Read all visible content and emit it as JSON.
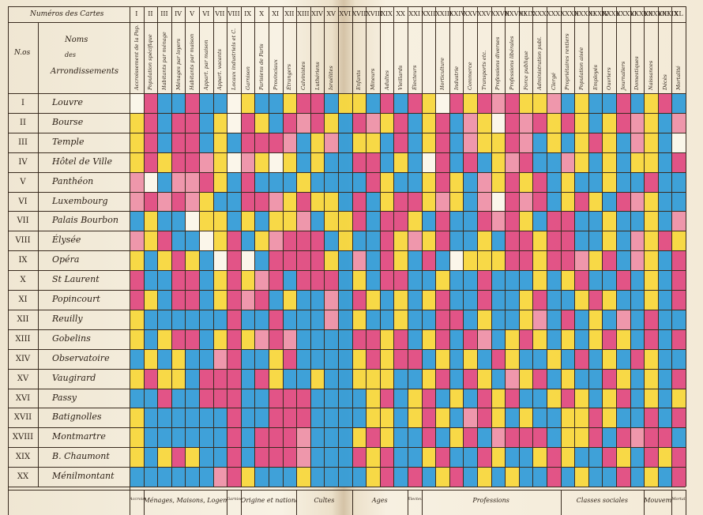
{
  "header": {
    "cards_title": "Numéros des Cartes",
    "no_label": "N.os",
    "names_label": [
      "Noms",
      "des",
      "Arrondissements"
    ]
  },
  "columns": [
    {
      "num": "I",
      "label": "Accroissement de la Pop."
    },
    {
      "num": "II",
      "label": "Population spécifique"
    },
    {
      "num": "III",
      "label": "Habitants par ménage"
    },
    {
      "num": "IV",
      "label": "Ménages par loyers"
    },
    {
      "num": "V",
      "label": "Habitants par maison"
    },
    {
      "num": "VI",
      "label": "Appart. par maison"
    },
    {
      "num": "VII",
      "label": "Appart. vacants"
    },
    {
      "num": "VIII",
      "label": "Locaux industriels et C."
    },
    {
      "num": "IX",
      "label": "Garnison"
    },
    {
      "num": "X",
      "label": "Parisiens de Paris"
    },
    {
      "num": "XI",
      "label": "Provinciaux"
    },
    {
      "num": "XII",
      "label": "Étrangers"
    },
    {
      "num": "XIII",
      "label": "Calvinistes"
    },
    {
      "num": "XIV",
      "label": "Luthériens"
    },
    {
      "num": "XV",
      "label": "Israélites"
    },
    {
      "num": "XVI",
      "label": ""
    },
    {
      "num": "XVII",
      "label": "Enfants"
    },
    {
      "num": "XVIII",
      "label": "Mineurs"
    },
    {
      "num": "XIX",
      "label": "Adultes"
    },
    {
      "num": "XX",
      "label": "Vieillards"
    },
    {
      "num": "XXI",
      "label": "Électeurs"
    },
    {
      "num": "XXII",
      "label": ""
    },
    {
      "num": "XXIII",
      "label": "Horticulture"
    },
    {
      "num": "XXIV",
      "label": "Industrie"
    },
    {
      "num": "XXV",
      "label": "Commerce"
    },
    {
      "num": "XXVI",
      "label": "Transports etc."
    },
    {
      "num": "XXVII",
      "label": "Professions diverses"
    },
    {
      "num": "XXVIII",
      "label": "Professions libérales"
    },
    {
      "num": "XXIX",
      "label": "Force publique"
    },
    {
      "num": "XXX",
      "label": "Administration publ."
    },
    {
      "num": "XXXI",
      "label": "Clergé"
    },
    {
      "num": "XXXII",
      "label": "Propriétaires rentiers"
    },
    {
      "num": "XXXIII",
      "label": "Population aisée"
    },
    {
      "num": "XXXIV",
      "label": "Employés"
    },
    {
      "num": "XXXV",
      "label": "Ouvriers"
    },
    {
      "num": "XXXVI",
      "label": "Journaliers"
    },
    {
      "num": "XXXVII",
      "label": "Domestiques"
    },
    {
      "num": "XXXVIII",
      "label": "Naissances"
    },
    {
      "num": "XXXIX",
      "label": "Décès"
    },
    {
      "num": "XL",
      "label": "Mortalité"
    }
  ],
  "rows": [
    {
      "num": "I",
      "name": "Louvre"
    },
    {
      "num": "II",
      "name": "Bourse"
    },
    {
      "num": "III",
      "name": "Temple"
    },
    {
      "num": "IV",
      "name": "Hôtel de Ville"
    },
    {
      "num": "V",
      "name": "Panthéon"
    },
    {
      "num": "VI",
      "name": "Luxembourg"
    },
    {
      "num": "VII",
      "name": "Palais Bourbon"
    },
    {
      "num": "VIII",
      "name": "Élysée"
    },
    {
      "num": "IX",
      "name": "Opéra"
    },
    {
      "num": "X",
      "name": "St Laurent"
    },
    {
      "num": "XI",
      "name": "Popincourt"
    },
    {
      "num": "XII",
      "name": "Reuilly"
    },
    {
      "num": "XIII",
      "name": "Gobelins"
    },
    {
      "num": "XIV",
      "name": "Observatoire"
    },
    {
      "num": "XV",
      "name": "Vaugirard"
    },
    {
      "num": "XVI",
      "name": "Passy"
    },
    {
      "num": "XVII",
      "name": "Batignolles"
    },
    {
      "num": "XVIII",
      "name": "Montmartre"
    },
    {
      "num": "XIX",
      "name": "B. Chaumont"
    },
    {
      "num": "XX",
      "name": "Ménilmontant"
    }
  ],
  "footer": [
    {
      "label": "Accroiss.",
      "from": 0,
      "to": 0
    },
    {
      "label": "Ménages, Maisons, Logements",
      "from": 1,
      "to": 6
    },
    {
      "label": "Garnison",
      "from": 7,
      "to": 7
    },
    {
      "label": "Origine et nationalité",
      "from": 8,
      "to": 11
    },
    {
      "label": "Cultes",
      "from": 12,
      "to": 15
    },
    {
      "label": "Ages",
      "from": 16,
      "to": 19
    },
    {
      "label": "Électeurs",
      "from": 20,
      "to": 20
    },
    {
      "label": "Professions",
      "from": 21,
      "to": 30
    },
    {
      "label": "Classes sociales",
      "from": 31,
      "to": 36
    },
    {
      "label": "Mouvements",
      "from": 37,
      "to": 38
    },
    {
      "label": "Mortalité",
      "from": 39,
      "to": 39
    }
  ],
  "colors": {
    "P": "#e0477f",
    "L": "#ee8fa7",
    "B": "#2f9ad8",
    "Y": "#f7d73a",
    "W": "#fbf6ea",
    "ink": "#3a2c20"
  },
  "chart_data": {
    "type": "heatmap",
    "category_key": {
      "P": "pink",
      "L": "light pink",
      "B": "blue",
      "Y": "yellow",
      "W": "white"
    },
    "grid": [
      "WPBBPBBWYBBYPPBYYBPBPYWPYPLPYYLBYBBPBYPB",
      "YPBPPBYWPYBPLPYBPLYPBYPBLYWPLPYPYBYPLYBL",
      "YPBPPBYBPPPLBYLBYYBPBYPBLYYPLBYBYPYBLYBW",
      "YPYPPLYWLYWYBYBBPPBYBWPBPBYLPBBLYBYBYYBP",
      "LWBLLPYBPBBBYBBBBPYBBYPYBLYPYPBYBBYBBPBB",
      "LPLPLYBBPPLYPYYBPBYPPYLYBLWPLPBYPYBPLYBB",
      "BYBBWYYBYBYYLBYYPBPPYBPBBPLPYBPPBBYBBYBL",
      "LYPBBWYPBYLPPPBYBBPYLYPBBYBPPYPPBBYBLYPY",
      "YBYPYBWPWBPPPPYBLBPYBPBWYYYPPYPPLYPBLYBP",
      "PBBPPBYPYLPBPPPBYBPPBBYBBPBBBYBYPBBPBYBP",
      "PYBPPBYPLPBYBBLBPYBYBYPBBPBBYPBBYPYBBYBP",
      "YBBBBBBPBBPBBBLBYBBYBBPPBYBBYLBPBYBLBPBB",
      "YBYPPBYPYLPLBBBBPPYPBYPBPLBYPYBYBYPYBPBP",
      "BYBYBBLPBBYPBBBBYPYPPBYBYBPYBBYBPBYBPYBB",
      "YPYYBPPPBPYBBYBBYYYBBYPBPYBLYPBYBBPYBYBP",
      "BBPBBPPPBBPPPBBBBYPBYPBYBPYPBBYPYBYPBYBY",
      "YBBBBBBPBBPPPBBBBYYBYPYBLPYBYBBYYPYBBPBP",
      "YBBBBBBPBPPPLBBBYPYBBPBYPBLPPPBYYPBPLPPB",
      "YBYPYBBPBPPPLBBBPYPBBYPBBPYBBYPYBBPYBPYP",
      "BBBBBBLPYBBBYBBBBYPBPBYPBYBYBBPBYBBPBYBP"
    ]
  }
}
